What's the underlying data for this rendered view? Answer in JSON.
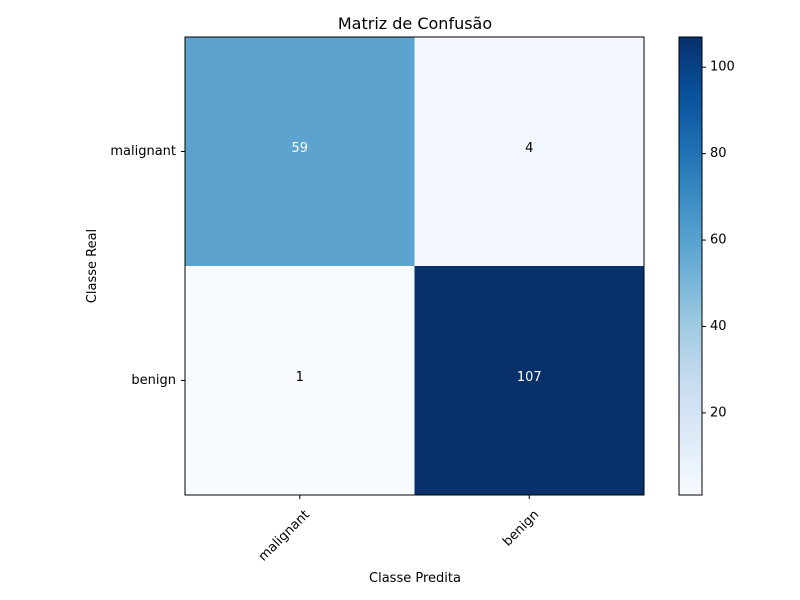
{
  "chart_data": {
    "type": "heatmap",
    "title": "Matriz de Confusão",
    "xlabel": "Classe Predita",
    "ylabel": "Classe Real",
    "x_categories": [
      "malignant",
      "benign"
    ],
    "y_categories": [
      "malignant",
      "benign"
    ],
    "matrix": [
      [
        59,
        4
      ],
      [
        1,
        107
      ]
    ],
    "colormap": "Blues",
    "colorbar": {
      "range": [
        1,
        107
      ],
      "ticks": [
        20,
        40,
        60,
        80,
        100
      ],
      "tick_labels": [
        "20",
        "40",
        "60",
        "80",
        "100"
      ]
    },
    "grid": false
  }
}
